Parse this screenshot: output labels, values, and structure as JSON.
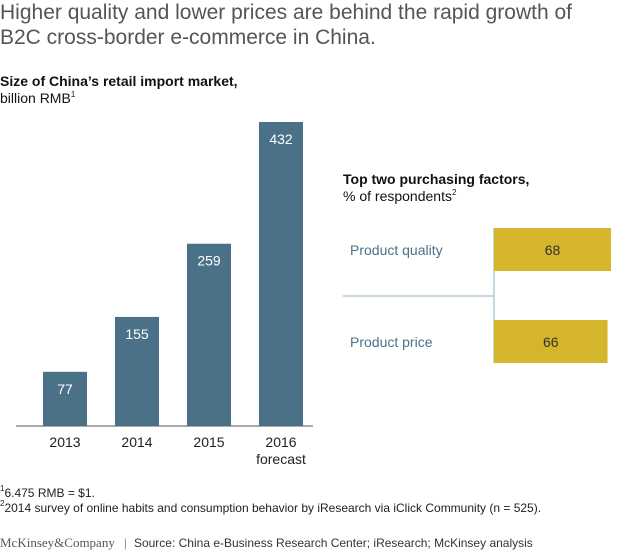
{
  "headline": {
    "line1": "Higher quality and lower prices are behind the rapid growth of",
    "line2": "B2C cross-border e-commerce in China."
  },
  "chart_data": [
    {
      "type": "bar",
      "title": "Size of China’s retail import market,",
      "subtitle": "billion RMB",
      "subtitle_note": "1",
      "categories": [
        "2013",
        "2014",
        "2015",
        "2016"
      ],
      "category_sublabels": [
        "",
        "",
        "",
        "forecast"
      ],
      "values": [
        77,
        155,
        259,
        432
      ],
      "ylim": [
        0,
        432
      ],
      "grid": false,
      "bar_color": "#4a7187",
      "label_color": "#ffffff"
    },
    {
      "type": "bar",
      "orientation": "horizontal",
      "title": "Top two purchasing factors,",
      "subtitle": "% of respondents",
      "subtitle_note": "2",
      "categories": [
        "Product quality",
        "Product price"
      ],
      "values": [
        68,
        66
      ],
      "bar_color": "#d4b52b",
      "label_color": "#333333"
    }
  ],
  "footnotes": {
    "note1_mark": "1",
    "note1": "6.475 RMB = $1.",
    "note2_mark": "2",
    "note2": "2014 survey of online habits and consumption behavior by iResearch via iClick Community (n = 525)."
  },
  "footer": {
    "brand": "McKinsey&Company",
    "separator": "|",
    "source": "Source: China e-Business Research Center; iResearch; McKinsey analysis"
  },
  "colors": {
    "axis": "#555555",
    "connector": "#8fb2c2",
    "text": "#222222"
  }
}
